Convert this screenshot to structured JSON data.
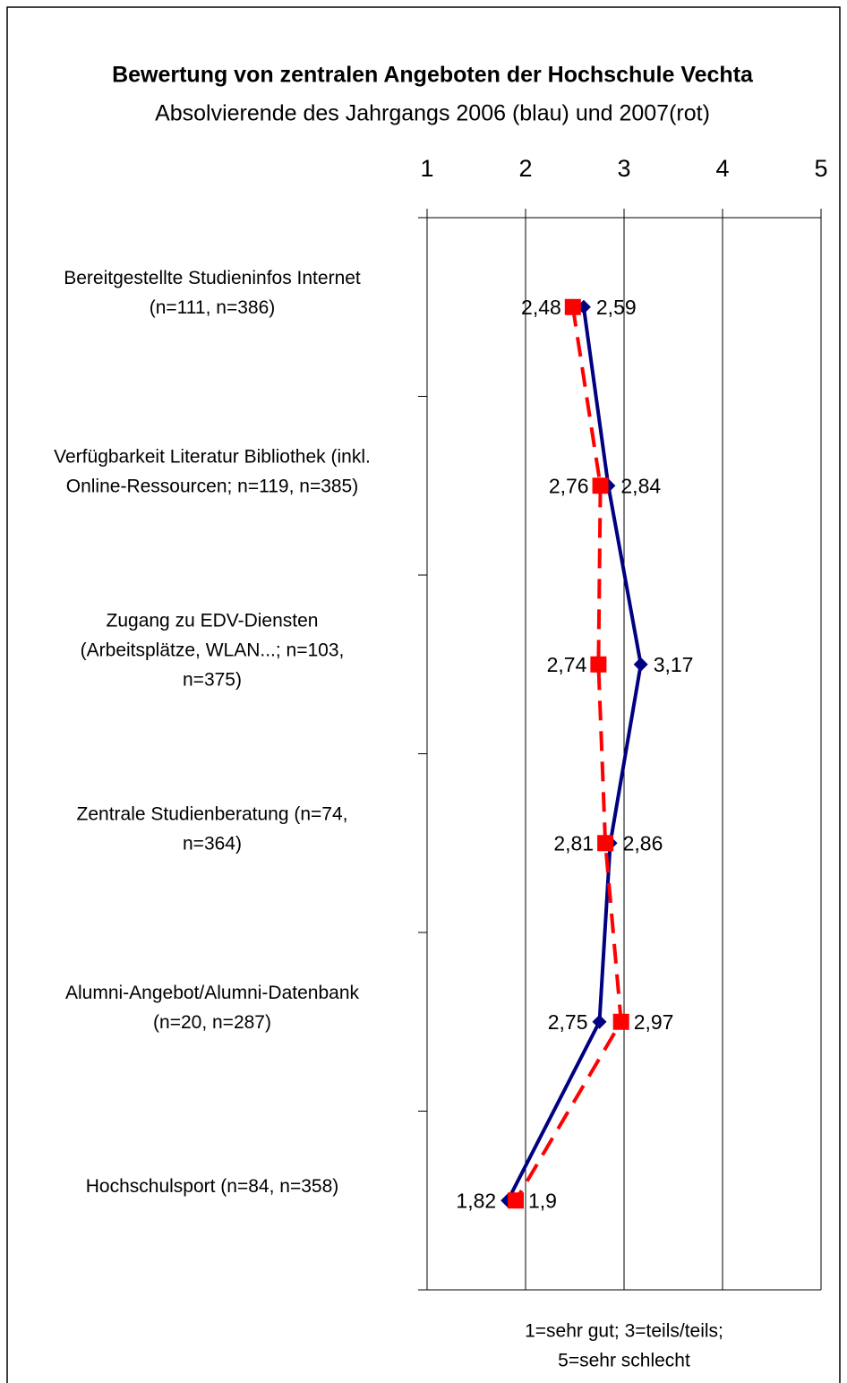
{
  "chart_data": {
    "type": "line",
    "orientation": "horizontal",
    "title": "Bewertung von zentralen Angeboten der Hochschule Vechta",
    "subtitle": "Absolvierende des Jahrgangs 2006 (blau) und 2007(rot)",
    "xlabel": [
      "1=sehr gut; 3=teils/teils;",
      "5=sehr schlecht"
    ],
    "categories": [
      [
        "Bereitgestellte Studieninfos Internet",
        "(n=111, n=386)"
      ],
      [
        "Verfügbarkeit Literatur Bibliothek (inkl.",
        "Online-Ressourcen; n=119, n=385)"
      ],
      [
        "Zugang zu EDV-Diensten",
        "(Arbeitsplätze, WLAN...; n=103,",
        "n=375)"
      ],
      [
        "Zentrale Studienberatung (n=74,",
        "n=364)"
      ],
      [
        "Alumni-Angebot/Alumni-Datenbank",
        "(n=20, n=287)"
      ],
      [
        "Hochschulsport (n=84, n=358)"
      ]
    ],
    "series": [
      {
        "color": "#000080",
        "marker": "diamond",
        "dashed": false,
        "values": [
          2.59,
          2.84,
          3.17,
          2.86,
          2.75,
          1.82
        ],
        "value_labels": [
          "2,59",
          "2,84",
          "3,17",
          "2,86",
          "2,75",
          "1,82"
        ]
      },
      {
        "color": "#ff0000",
        "marker": "square",
        "dashed": true,
        "values": [
          2.48,
          2.76,
          2.74,
          2.81,
          2.97,
          1.9
        ],
        "value_labels": [
          "2,48",
          "2,76",
          "2,74",
          "2,81",
          "2,97",
          "1,9"
        ]
      }
    ],
    "xlim": [
      1,
      5
    ],
    "xticks": [
      1,
      2,
      3,
      4,
      5
    ],
    "grid": true
  }
}
